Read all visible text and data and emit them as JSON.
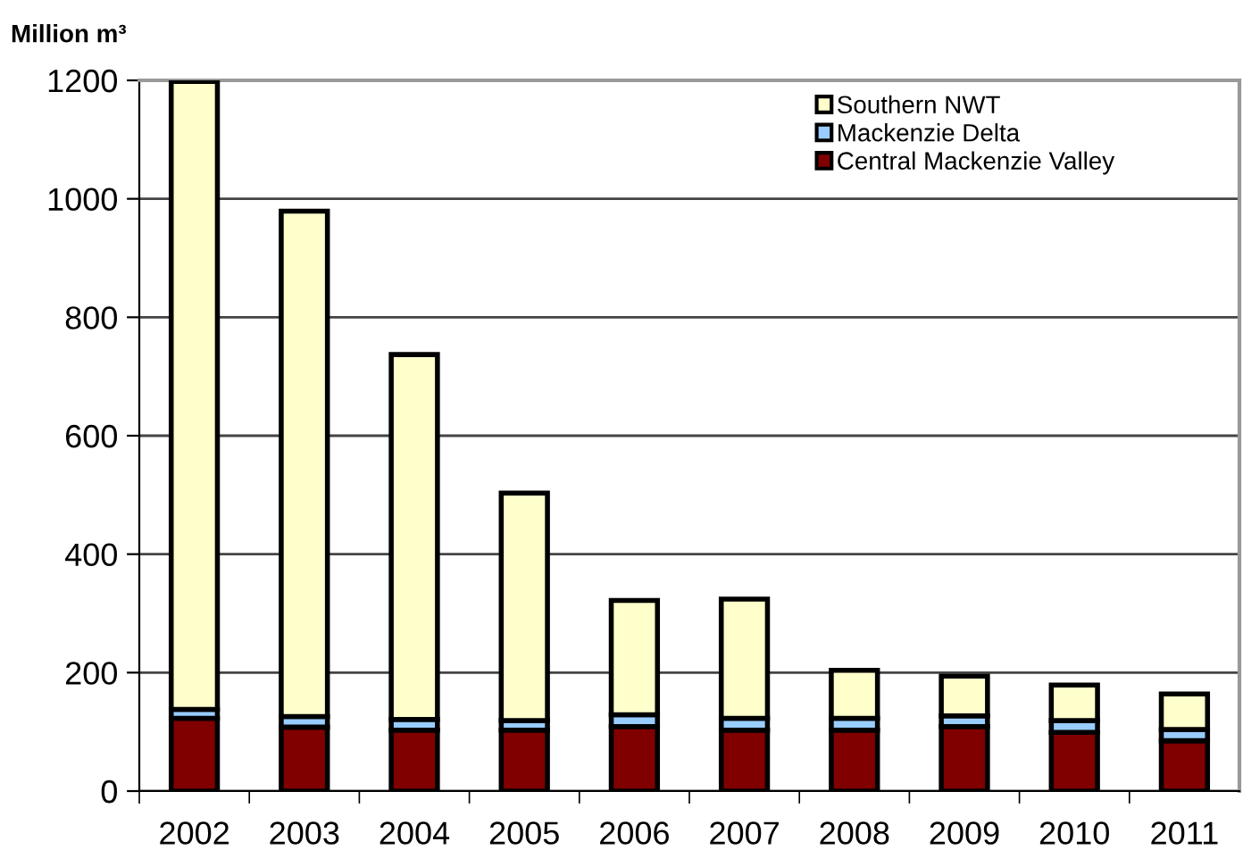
{
  "chart_data": {
    "type": "bar",
    "stacked": true,
    "ylabel": "Million m³",
    "categories": [
      "2002",
      "2003",
      "2004",
      "2005",
      "2006",
      "2007",
      "2008",
      "2009",
      "2010",
      "2011"
    ],
    "series": [
      {
        "name": "Central Mackenzie Valley",
        "color": "#800000",
        "values": [
          123,
          108,
          103,
          103,
          109,
          103,
          103,
          109,
          99,
          85
        ]
      },
      {
        "name": "Mackenzie Delta",
        "color": "#99ccff",
        "values": [
          15,
          18,
          18,
          16,
          20,
          20,
          20,
          18,
          20,
          19
        ]
      },
      {
        "name": "Southern NWT",
        "color": "#ffffcc",
        "values": [
          1060,
          853,
          616,
          384,
          193,
          201,
          81,
          67,
          60,
          60
        ]
      }
    ],
    "ylim": [
      0,
      1200
    ],
    "yticks": [
      0,
      200,
      400,
      600,
      800,
      1000,
      1200
    ],
    "grid": "y",
    "legend": "top right"
  }
}
